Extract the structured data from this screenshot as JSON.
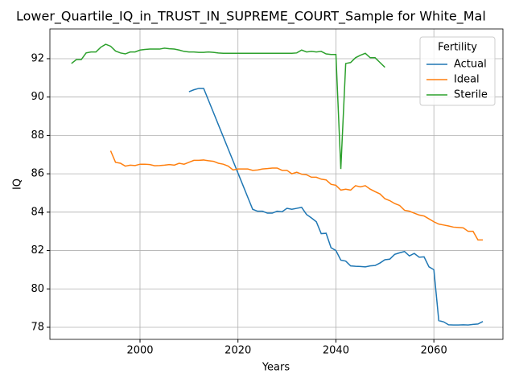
{
  "chart_data": {
    "type": "line",
    "title": "Lower_Quartile_IQ_in_TRUST_IN_SUPREME_COURT_Sample for White_Mal",
    "x_label": "Years",
    "y_label": "IQ",
    "xlim": [
      1981.6,
      2074.1
    ],
    "ylim": [
      77.37,
      93.55
    ],
    "xticks": [
      2000,
      2020,
      2040,
      2060
    ],
    "yticks": [
      78,
      80,
      82,
      84,
      86,
      88,
      90,
      92
    ],
    "grid": true,
    "legend_title": "Fertility",
    "legend_loc": "upper right",
    "series": [
      {
        "name": "Actual",
        "color": "#1f77b4",
        "x": [
          2010,
          2011,
          2012,
          2013,
          2014,
          2015,
          2016,
          2017,
          2018,
          2019,
          2020,
          2021,
          2022,
          2023,
          2024,
          2025,
          2026,
          2027,
          2028,
          2029,
          2030,
          2031,
          2032,
          2033,
          2034,
          2035,
          2036,
          2037,
          2038,
          2039,
          2040,
          2041,
          2042,
          2043,
          2044,
          2045,
          2046,
          2047,
          2048,
          2049,
          2050,
          2051,
          2052,
          2053,
          2054,
          2055,
          2056,
          2057,
          2058,
          2059,
          2060,
          2061,
          2062,
          2063,
          2064,
          2065,
          2066,
          2067,
          2068,
          2069,
          2070
        ],
        "values": [
          90.28,
          90.38,
          90.45,
          90.45,
          89.82,
          89.19,
          88.56,
          87.93,
          87.3,
          86.67,
          86.04,
          85.41,
          84.78,
          84.15,
          84.05,
          84.05,
          83.95,
          83.95,
          84.05,
          84.02,
          84.2,
          84.15,
          84.2,
          84.25,
          83.88,
          83.7,
          83.5,
          82.88,
          82.9,
          82.15,
          82.0,
          81.5,
          81.45,
          81.2,
          81.18,
          81.17,
          81.15,
          81.2,
          81.22,
          81.35,
          81.52,
          81.55,
          81.8,
          81.88,
          81.95,
          81.72,
          81.85,
          81.65,
          81.67,
          81.15,
          81.0,
          78.35,
          78.28,
          78.13,
          78.12,
          78.12,
          78.13,
          78.12,
          78.15,
          78.17,
          78.3
        ]
      },
      {
        "name": "Ideal",
        "color": "#ff7f0e",
        "x": [
          1994,
          1995,
          1996,
          1997,
          1998,
          1999,
          2000,
          2001,
          2002,
          2003,
          2004,
          2005,
          2006,
          2007,
          2008,
          2009,
          2010,
          2011,
          2012,
          2013,
          2014,
          2015,
          2016,
          2017,
          2018,
          2019,
          2020,
          2021,
          2022,
          2023,
          2024,
          2025,
          2026,
          2027,
          2028,
          2029,
          2030,
          2031,
          2032,
          2033,
          2034,
          2035,
          2036,
          2037,
          2038,
          2039,
          2040,
          2041,
          2042,
          2043,
          2044,
          2045,
          2046,
          2047,
          2048,
          2049,
          2050,
          2051,
          2052,
          2053,
          2054,
          2055,
          2056,
          2057,
          2058,
          2059,
          2060,
          2061,
          2062,
          2063,
          2064,
          2065,
          2066,
          2067,
          2068,
          2069,
          2070
        ],
        "values": [
          87.2,
          86.6,
          86.55,
          86.4,
          86.45,
          86.43,
          86.5,
          86.5,
          86.48,
          86.42,
          86.43,
          86.45,
          86.48,
          86.45,
          86.55,
          86.5,
          86.6,
          86.7,
          86.7,
          86.72,
          86.68,
          86.65,
          86.55,
          86.5,
          86.4,
          86.2,
          86.25,
          86.25,
          86.25,
          86.18,
          86.2,
          86.25,
          86.27,
          86.3,
          86.3,
          86.18,
          86.18,
          86.0,
          86.08,
          85.98,
          85.95,
          85.82,
          85.82,
          85.72,
          85.68,
          85.45,
          85.4,
          85.15,
          85.2,
          85.15,
          85.38,
          85.32,
          85.38,
          85.2,
          85.07,
          84.95,
          84.7,
          84.6,
          84.45,
          84.35,
          84.1,
          84.05,
          83.95,
          83.85,
          83.8,
          83.65,
          83.5,
          83.38,
          83.33,
          83.28,
          83.22,
          83.2,
          83.18,
          83.0,
          83.0,
          82.55,
          82.55
        ]
      },
      {
        "name": "Sterile",
        "color": "#2ca02c",
        "x": [
          1986,
          1987,
          1988,
          1989,
          1990,
          1991,
          1992,
          1993,
          1994,
          1995,
          1996,
          1997,
          1998,
          1999,
          2000,
          2001,
          2002,
          2003,
          2004,
          2005,
          2006,
          2007,
          2008,
          2009,
          2010,
          2011,
          2012,
          2013,
          2014,
          2015,
          2016,
          2017,
          2018,
          2019,
          2020,
          2021,
          2022,
          2023,
          2024,
          2025,
          2026,
          2027,
          2028,
          2029,
          2030,
          2031,
          2032,
          2033,
          2034,
          2035,
          2036,
          2037,
          2038,
          2039,
          2040,
          2041,
          2042,
          2043,
          2044,
          2045,
          2046,
          2047,
          2048,
          2049,
          2050
        ],
        "values": [
          91.75,
          91.95,
          91.95,
          92.3,
          92.35,
          92.35,
          92.6,
          92.75,
          92.65,
          92.4,
          92.3,
          92.25,
          92.35,
          92.35,
          92.45,
          92.48,
          92.5,
          92.5,
          92.5,
          92.55,
          92.52,
          92.5,
          92.45,
          92.38,
          92.35,
          92.35,
          92.33,
          92.33,
          92.35,
          92.33,
          92.3,
          92.28,
          92.28,
          92.28,
          92.28,
          92.28,
          92.28,
          92.28,
          92.28,
          92.28,
          92.28,
          92.28,
          92.28,
          92.28,
          92.28,
          92.28,
          92.3,
          92.45,
          92.35,
          92.38,
          92.35,
          92.38,
          92.25,
          92.22,
          92.22,
          86.25,
          91.75,
          91.8,
          92.05,
          92.18,
          92.28,
          92.05,
          92.05,
          91.8,
          91.55
        ]
      }
    ]
  }
}
